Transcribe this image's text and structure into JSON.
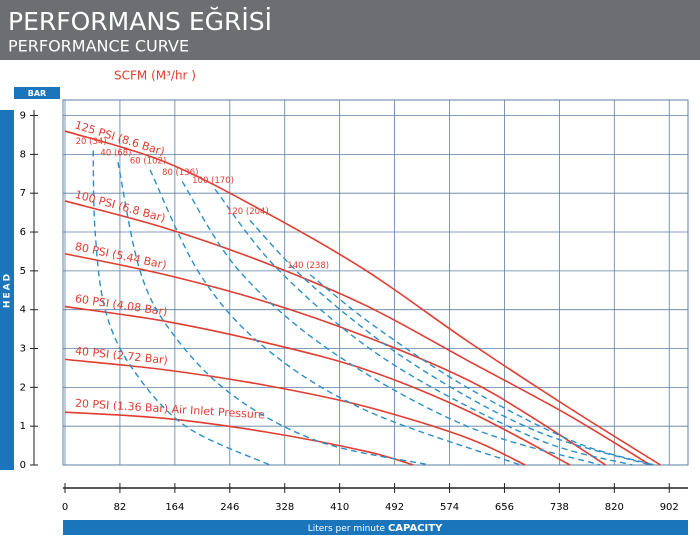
{
  "header": {
    "title": "PERFORMANS EĞRİSİ",
    "subtitle": "PERFORMANCE CURVE"
  },
  "chart_data": {
    "type": "line",
    "y_unit": "BAR",
    "y_label": "HEAD",
    "top_label": "SCFM (M³/hr )",
    "x_label": "Liters per minute",
    "x_label_emphasis": "CAPACITY",
    "xlim": [
      0,
      930
    ],
    "xticks": [
      0,
      82,
      164,
      246,
      328,
      410,
      492,
      574,
      656,
      738,
      820,
      902
    ],
    "ylim": [
      0,
      9.4
    ],
    "yticks": [
      0,
      1,
      2,
      3,
      4,
      5,
      6,
      7,
      8,
      9
    ],
    "grid": true,
    "series": [
      {
        "name": "125 PSI (8.6 Bar)",
        "color": "#e03c31",
        "dashed": false,
        "x": [
          0,
          150,
          300,
          450,
          600,
          750,
          889
        ],
        "values": [
          8.6,
          7.8,
          6.5,
          5.0,
          3.2,
          1.5,
          0
        ]
      },
      {
        "name": "100 PSI (6.8 Bar)",
        "color": "#e03c31",
        "dashed": false,
        "x": [
          0,
          150,
          300,
          450,
          600,
          750,
          874
        ],
        "values": [
          6.8,
          6.1,
          5.2,
          4.1,
          2.7,
          1.3,
          0
        ]
      },
      {
        "name": "80 PSI (5.44 Bar)",
        "color": "#e03c31",
        "dashed": false,
        "x": [
          0,
          150,
          300,
          450,
          600,
          700,
          807
        ],
        "values": [
          5.44,
          4.9,
          4.2,
          3.3,
          2.2,
          1.2,
          0
        ]
      },
      {
        "name": "60 PSI (4.08 Bar)",
        "color": "#e03c31",
        "dashed": false,
        "x": [
          0,
          150,
          300,
          450,
          600,
          754
        ],
        "values": [
          4.08,
          3.7,
          3.15,
          2.45,
          1.4,
          0
        ]
      },
      {
        "name": "40 PSI (2.72 Bar)",
        "color": "#e03c31",
        "dashed": false,
        "x": [
          0,
          150,
          300,
          450,
          600,
          687
        ],
        "values": [
          2.72,
          2.45,
          2.05,
          1.5,
          0.7,
          0
        ]
      },
      {
        "name": "20 PSI (1.36 Bar) Air Inlet Pressure",
        "color": "#e03c31",
        "dashed": false,
        "x": [
          0,
          150,
          300,
          450,
          520
        ],
        "values": [
          1.36,
          1.2,
          0.85,
          0.35,
          0
        ]
      },
      {
        "name": "20 (34)",
        "color": "#2a8fc9",
        "dashed": true,
        "x": [
          42,
          45,
          60,
          100,
          180,
          306
        ],
        "values": [
          8.1,
          6.0,
          4.0,
          2.5,
          1.0,
          0
        ]
      },
      {
        "name": "40 (68)",
        "color": "#2a8fc9",
        "dashed": true,
        "x": [
          79,
          112,
          160,
          250,
          380,
          545
        ],
        "values": [
          7.8,
          5.0,
          3.4,
          1.8,
          0.6,
          0
        ]
      },
      {
        "name": "60 (102)",
        "color": "#2a8fc9",
        "dashed": true,
        "x": [
          127,
          202,
          300,
          450,
          680
        ],
        "values": [
          7.6,
          4.9,
          3.0,
          1.4,
          0
        ]
      },
      {
        "name": "80 (136)",
        "color": "#2a8fc9",
        "dashed": true,
        "x": [
          175,
          260,
          400,
          600,
          799
        ],
        "values": [
          7.3,
          5.0,
          2.9,
          1.0,
          0
        ]
      },
      {
        "name": "100 (170)",
        "color": "#2a8fc9",
        "dashed": true,
        "x": [
          224,
          320,
          480,
          700,
          847
        ],
        "values": [
          7.1,
          5.0,
          2.7,
          0.7,
          0
        ]
      },
      {
        "name": "120 (204)",
        "color": "#2a8fc9",
        "dashed": true,
        "x": [
          276,
          370,
          520,
          700,
          874
        ],
        "values": [
          6.3,
          4.6,
          2.6,
          0.9,
          0
        ]
      },
      {
        "name": "140 (238)",
        "color": "#2a8fc9",
        "dashed": true,
        "x": [
          366,
          460,
          600,
          760,
          880
        ],
        "values": [
          4.9,
          3.6,
          2.0,
          0.6,
          0
        ]
      }
    ]
  }
}
